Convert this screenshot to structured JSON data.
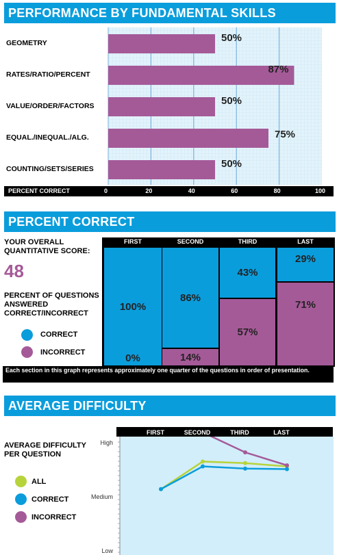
{
  "colors": {
    "blue": "#0a9ddc",
    "purple": "#a55a98",
    "green": "#b7d33b",
    "panel": "#d2eefa"
  },
  "skills": {
    "header": "PERFORMANCE BY FUNDAMENTAL SKILLS",
    "axis_label": "PERCENT CORRECT",
    "chart_data": {
      "type": "bar",
      "orientation": "horizontal",
      "categories": [
        "GEOMETRY",
        "RATES/RATIO/PERCENT",
        "VALUE/ORDER/FACTORS",
        "EQUAL./INEQUAL./ALG.",
        "COUNTING/SETS/SERIES"
      ],
      "values": [
        50,
        87,
        50,
        75,
        50
      ],
      "value_labels": [
        "50%",
        "87%",
        "50%",
        "75%",
        "50%"
      ],
      "xlim": [
        0,
        100
      ],
      "ticks": [
        "0",
        "20",
        "40",
        "60",
        "80",
        "100"
      ],
      "grid": true
    }
  },
  "percent": {
    "header": "PERCENT CORRECT",
    "score_label": "YOUR OVERALL QUANTITATIVE SCORE:",
    "score": "48",
    "subtitle": "PERCENT OF QUESTIONS ANSWERED CORRECT/INCORRECT",
    "legend": [
      "CORRECT",
      "INCORRECT"
    ],
    "note": "Each section in this graph represents approximately one quarter of the questions in order of presentation.",
    "chart_data": {
      "type": "bar",
      "stacked": true,
      "categories": [
        "FIRST",
        "SECOND",
        "THIRD",
        "LAST"
      ],
      "series": [
        {
          "name": "CORRECT",
          "values": [
            100,
            86,
            43,
            29
          ],
          "labels": [
            "100%",
            "86%",
            "43%",
            "29%"
          ]
        },
        {
          "name": "INCORRECT",
          "values": [
            0,
            14,
            57,
            71
          ],
          "labels": [
            "0%",
            "14%",
            "57%",
            "71%"
          ]
        }
      ],
      "ylim": [
        0,
        100
      ]
    }
  },
  "difficulty": {
    "header": "AVERAGE DIFFICULTY",
    "subtitle": "AVERAGE DIFFICULTY PER QUESTION",
    "legend": [
      "ALL",
      "CORRECT",
      "INCORRECT"
    ],
    "chart_data": {
      "type": "line",
      "categories": [
        "FIRST",
        "SECOND",
        "THIRD",
        "LAST"
      ],
      "y_tick_labels": [
        "High",
        "Medium",
        "Low"
      ],
      "ylim": [
        0,
        2
      ],
      "series": [
        {
          "name": "ALL",
          "values": [
            1.13,
            1.64,
            1.61,
            1.55
          ]
        },
        {
          "name": "CORRECT",
          "values": [
            1.13,
            1.55,
            1.51,
            1.5
          ]
        },
        {
          "name": "INCORRECT",
          "values": [
            null,
            2.18,
            1.81,
            1.57
          ]
        }
      ]
    }
  }
}
